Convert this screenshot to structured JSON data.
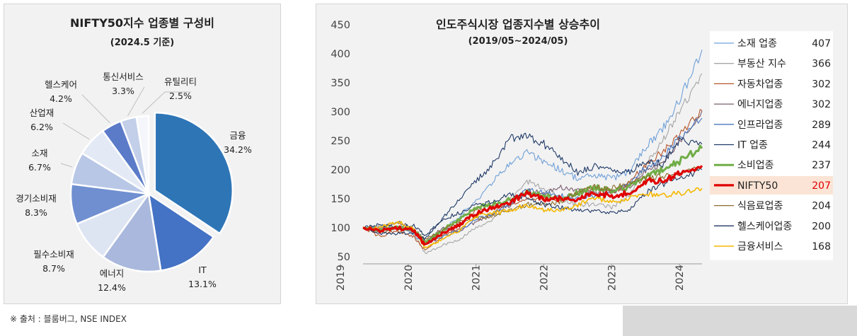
{
  "pie_chart": {
    "title": "NIFTY50지수 업종별 구성비",
    "subtitle": "(2024.5 기준)"
  },
  "line_chart": {
    "title": "인도주식시장 업종지수별 상승추이",
    "subtitle": "(2019/05~2024/05)"
  },
  "footer": {
    "source": "※ 출처 : 블룸버그, NSE INDEX"
  },
  "chart_data": [
    {
      "type": "pie",
      "title": "NIFTY50지수 업종별 구성비",
      "subtitle": "(2024.5 기준)",
      "unit": "%",
      "slices": [
        {
          "label": "금융",
          "value": 34.2,
          "value_label": "34.2%",
          "color": "#2e75b6",
          "exploded": true
        },
        {
          "label": "IT",
          "value": 13.1,
          "value_label": "13.1%",
          "color": "#4472c4"
        },
        {
          "label": "에너지",
          "value": 12.4,
          "value_label": "12.4%",
          "color": "#a9b8dc"
        },
        {
          "label": "필수소비재",
          "value": 8.7,
          "value_label": "8.7%",
          "color": "#dde4f2"
        },
        {
          "label": "경기소비재",
          "value": 8.3,
          "value_label": "8.3%",
          "color": "#6f8fd0"
        },
        {
          "label": "소재",
          "value": 6.7,
          "value_label": "6.7%",
          "color": "#b8c7e6"
        },
        {
          "label": "산업재",
          "value": 6.2,
          "value_label": "6.2%",
          "color": "#e3e9f5"
        },
        {
          "label": "헬스케어",
          "value": 4.2,
          "value_label": "4.2%",
          "color": "#5b7bc9"
        },
        {
          "label": "통신서비스",
          "value": 3.3,
          "value_label": "3.3%",
          "color": "#c3cfe9"
        },
        {
          "label": "유틸리티",
          "value": 2.5,
          "value_label": "2.5%",
          "color": "#f4f6fb"
        }
      ]
    },
    {
      "type": "line",
      "title": "인도주식시장 업종지수별 상승추이",
      "subtitle": "(2019/05~2024/05)",
      "xlim": [
        "2019-05",
        "2024-05"
      ],
      "ylim": [
        50,
        450
      ],
      "x_ticks": [
        "2019",
        "2020",
        "2021",
        "2022",
        "2023",
        "2024"
      ],
      "y_ticks": [
        50,
        100,
        150,
        200,
        250,
        300,
        350,
        400,
        450
      ],
      "grid": false,
      "legend_position": "right",
      "highlight_series": "NIFTY50",
      "x": [
        "2019-05",
        "2019-08",
        "2019-11",
        "2020-02",
        "2020-04",
        "2020-07",
        "2020-10",
        "2021-01",
        "2021-04",
        "2021-07",
        "2021-10",
        "2022-01",
        "2022-04",
        "2022-07",
        "2022-10",
        "2023-01",
        "2023-04",
        "2023-07",
        "2023-10",
        "2024-01",
        "2024-05"
      ],
      "series": [
        {
          "name": "소재 업종",
          "last_label": "407",
          "color": "#6fa0d8",
          "width": 1.1,
          "values": [
            100,
            95,
            100,
            90,
            70,
            95,
            120,
            145,
            180,
            210,
            230,
            215,
            200,
            185,
            190,
            185,
            195,
            240,
            270,
            320,
            407
          ]
        },
        {
          "name": "부동산 지수",
          "last_label": "366",
          "color": "#a6a6a6",
          "width": 1.1,
          "values": [
            100,
            102,
            100,
            92,
            55,
            70,
            80,
            100,
            115,
            150,
            180,
            170,
            150,
            140,
            140,
            135,
            155,
            210,
            250,
            300,
            366
          ]
        },
        {
          "name": "자동차업종",
          "last_label": "302",
          "color": "#b5562a",
          "width": 1.1,
          "values": [
            100,
            85,
            95,
            85,
            60,
            85,
            100,
            130,
            135,
            140,
            150,
            150,
            148,
            160,
            165,
            160,
            175,
            210,
            230,
            260,
            302
          ]
        },
        {
          "name": "에너지업종",
          "last_label": "302",
          "color": "#7a5c6e",
          "width": 1.1,
          "values": [
            100,
            100,
            110,
            100,
            75,
            100,
            95,
            110,
            125,
            140,
            165,
            160,
            170,
            165,
            160,
            165,
            170,
            200,
            210,
            250,
            302
          ]
        },
        {
          "name": "인프라업종",
          "last_label": "289",
          "color": "#4a78c0",
          "width": 1.1,
          "values": [
            100,
            95,
            100,
            95,
            70,
            85,
            95,
            115,
            125,
            140,
            165,
            160,
            155,
            150,
            155,
            160,
            175,
            205,
            220,
            255,
            289
          ]
        },
        {
          "name": "IT 업종",
          "last_label": "244",
          "color": "#1f3a68",
          "width": 1.1,
          "values": [
            100,
            105,
            100,
            105,
            85,
            115,
            150,
            180,
            210,
            255,
            260,
            245,
            220,
            195,
            205,
            200,
            195,
            215,
            210,
            250,
            244
          ]
        },
        {
          "name": "소비업종",
          "last_label": "237",
          "color": "#70ad47",
          "width": 3,
          "values": [
            100,
            95,
            100,
            98,
            75,
            95,
            115,
            135,
            140,
            150,
            160,
            155,
            150,
            160,
            170,
            165,
            170,
            190,
            200,
            215,
            237
          ]
        },
        {
          "name": "NIFTY50",
          "last_label": "207",
          "color": "#e00000",
          "width": 3.2,
          "highlight": true,
          "values": [
            100,
            95,
            100,
            95,
            70,
            90,
            105,
            125,
            135,
            145,
            160,
            150,
            150,
            150,
            160,
            155,
            160,
            180,
            180,
            195,
            207
          ]
        },
        {
          "name": "식음료업종",
          "last_label": "204",
          "color": "#8c6d28",
          "width": 1.1,
          "values": [
            100,
            92,
            98,
            95,
            80,
            95,
            110,
            115,
            120,
            130,
            140,
            140,
            145,
            160,
            170,
            168,
            175,
            185,
            188,
            195,
            204
          ]
        },
        {
          "name": "헬스케어업종",
          "last_label": "200",
          "color": "#203864",
          "width": 1.1,
          "values": [
            100,
            90,
            90,
            90,
            80,
            115,
            125,
            140,
            145,
            160,
            150,
            140,
            135,
            130,
            130,
            125,
            130,
            160,
            175,
            185,
            200
          ]
        },
        {
          "name": "금융서비스",
          "last_label": "168",
          "color": "#f5b800",
          "width": 1.6,
          "values": [
            100,
            100,
            110,
            100,
            65,
            80,
            95,
            120,
            125,
            130,
            140,
            130,
            130,
            140,
            150,
            145,
            150,
            160,
            155,
            160,
            168
          ]
        }
      ]
    }
  ]
}
